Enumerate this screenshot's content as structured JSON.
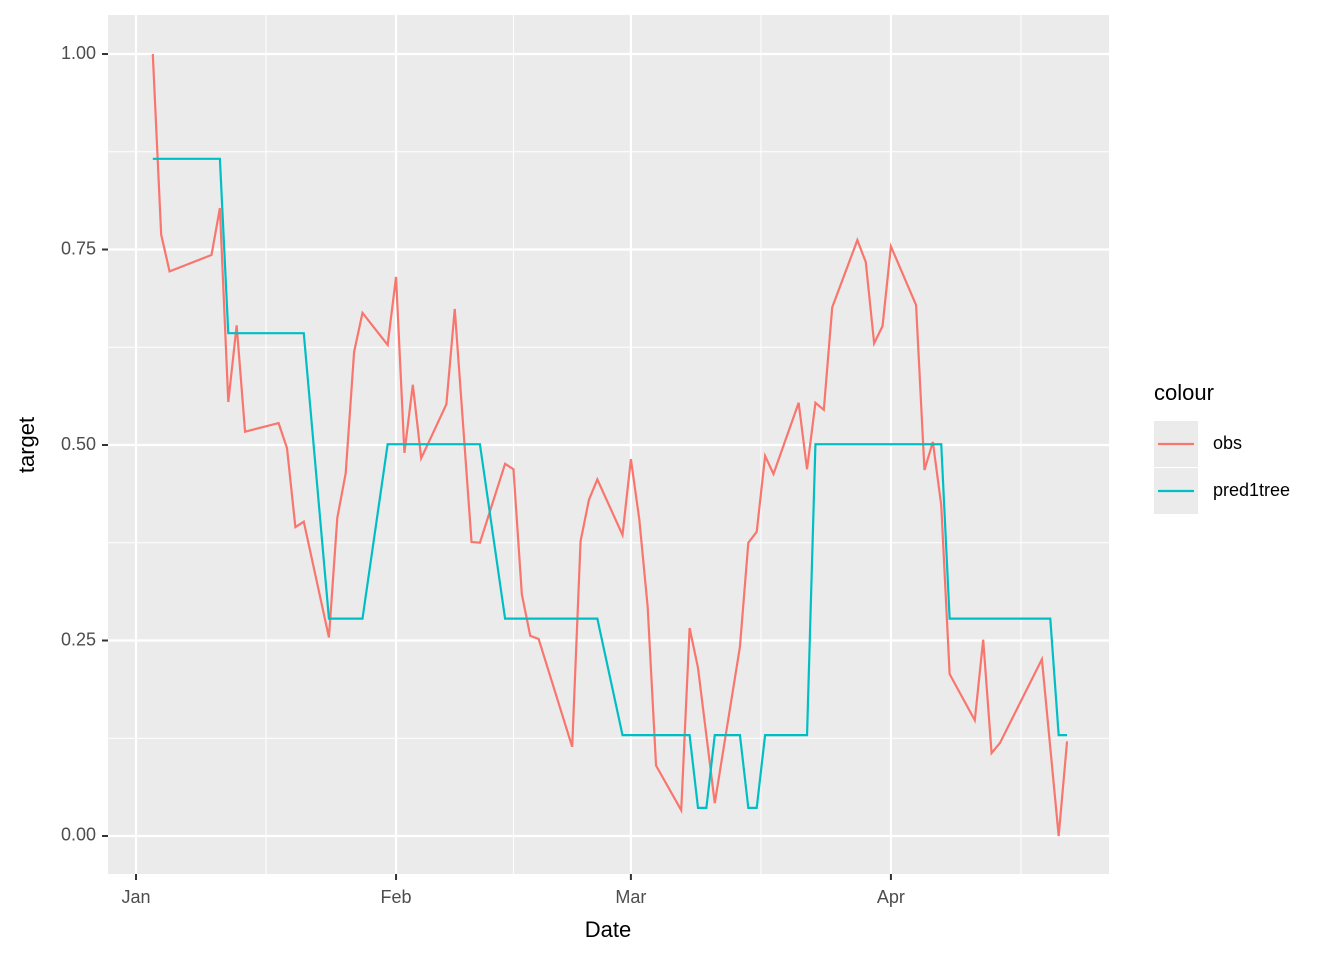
{
  "chart_data": {
    "type": "line",
    "x_label": "Date",
    "y_label": "target",
    "legend_title": "colour",
    "xlim": [
      -3.34,
      116
    ],
    "ylim": [
      -0.0486,
      1.0499
    ],
    "xticks": [
      {
        "value": 0,
        "label": "Jan"
      },
      {
        "value": 31,
        "label": "Feb"
      },
      {
        "value": 59,
        "label": "Mar"
      },
      {
        "value": 90,
        "label": "Apr"
      }
    ],
    "yticks": [
      {
        "value": 0,
        "label": "0.00"
      },
      {
        "value": 0.25,
        "label": "0.25"
      },
      {
        "value": 0.5,
        "label": "0.50"
      },
      {
        "value": 0.75,
        "label": "0.75"
      },
      {
        "value": 1,
        "label": "1.00"
      }
    ],
    "grid": true,
    "series": [
      {
        "name": "obs",
        "color": "#F8766D",
        "x": [
          2,
          3,
          4,
          9,
          10,
          11,
          12,
          13,
          17,
          18,
          19,
          20,
          23,
          24,
          25,
          26,
          27,
          30,
          31,
          32,
          33,
          34,
          37,
          38,
          40,
          41,
          44,
          45,
          46,
          47,
          48,
          52,
          53,
          54,
          55,
          58,
          59,
          60,
          61,
          62,
          65,
          66,
          67,
          69,
          72,
          73,
          74,
          75,
          76,
          79,
          80,
          81,
          82,
          83,
          86,
          87,
          88,
          89,
          90,
          93,
          94,
          95,
          96,
          97,
          100,
          101,
          102,
          103,
          108,
          110,
          111
        ],
        "values": [
          1.0,
          0.769,
          0.722,
          0.743,
          0.803,
          0.555,
          0.653,
          0.517,
          0.528,
          0.496,
          0.395,
          0.402,
          0.254,
          0.407,
          0.464,
          0.619,
          0.669,
          0.628,
          0.715,
          0.49,
          0.577,
          0.483,
          0.552,
          0.674,
          0.376,
          0.375,
          0.476,
          0.469,
          0.309,
          0.256,
          0.252,
          0.114,
          0.377,
          0.43,
          0.456,
          0.385,
          0.482,
          0.405,
          0.293,
          0.09,
          0.033,
          0.266,
          0.215,
          0.042,
          0.242,
          0.375,
          0.389,
          0.486,
          0.463,
          0.554,
          0.469,
          0.554,
          0.545,
          0.676,
          0.762,
          0.734,
          0.63,
          0.652,
          0.754,
          0.679,
          0.468,
          0.504,
          0.423,
          0.207,
          0.148,
          0.251,
          0.106,
          0.119,
          0.226,
          0.0,
          0.121
        ]
      },
      {
        "name": "pred1tree",
        "color": "#00BFC4",
        "x": [
          2,
          10,
          11,
          20,
          23,
          27,
          30,
          41,
          44,
          55,
          58,
          66,
          67,
          68,
          69,
          72,
          73,
          74,
          75,
          80,
          81,
          96,
          97,
          109,
          110,
          111
        ],
        "values": [
          0.866,
          0.866,
          0.643,
          0.643,
          0.278,
          0.278,
          0.501,
          0.501,
          0.278,
          0.278,
          0.129,
          0.129,
          0.036,
          0.036,
          0.129,
          0.129,
          0.036,
          0.036,
          0.129,
          0.129,
          0.501,
          0.501,
          0.278,
          0.278,
          0.129,
          0.129
        ]
      }
    ]
  }
}
